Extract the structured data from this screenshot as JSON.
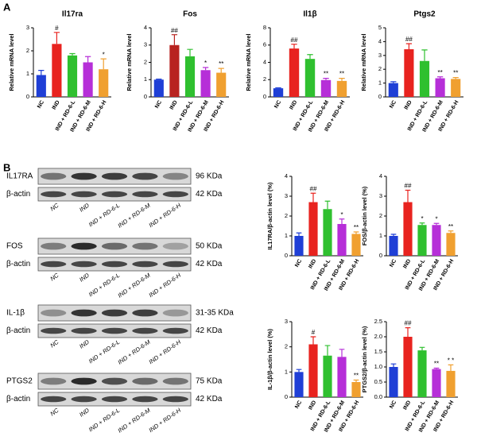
{
  "panel_labels": [
    "A",
    "B"
  ],
  "chart_data": [
    {
      "type": "bar",
      "title": "Il17ra",
      "ylabel": "Relative mRNA level",
      "categories": [
        "NC",
        "IND",
        "IND + RD-6-L",
        "IND + RD-6-M",
        "IND + RD-6-H"
      ],
      "values": [
        0.95,
        2.3,
        1.8,
        1.5,
        1.2
      ],
      "errors": [
        0.2,
        0.5,
        0.08,
        0.25,
        0.45
      ],
      "colors": [
        "#1f3fd6",
        "#e8231f",
        "#2fc02f",
        "#b62fd8",
        "#f0a030"
      ],
      "annotations": [
        null,
        "#",
        null,
        null,
        "*"
      ],
      "ylim": [
        0,
        3
      ],
      "yticks": [
        0,
        1,
        2,
        3
      ]
    },
    {
      "type": "bar",
      "title": "Fos",
      "ylabel": "Relative mRNA level",
      "categories": [
        "NC",
        "IND",
        "IND + RD-6-L",
        "IND + RD-6-M",
        "IND + RD-6-H"
      ],
      "values": [
        1.0,
        3.0,
        2.35,
        1.55,
        1.4
      ],
      "errors": [
        0.03,
        0.6,
        0.4,
        0.15,
        0.25
      ],
      "colors": [
        "#1f3fd6",
        "#b8231f",
        "#2fc02f",
        "#b62fd8",
        "#f0a030"
      ],
      "annotations": [
        null,
        "##",
        null,
        "*",
        "**"
      ],
      "ylim": [
        0,
        4
      ],
      "yticks": [
        0,
        1,
        2,
        3,
        4
      ]
    },
    {
      "type": "bar",
      "title": "Il1β",
      "ylabel": "Relative mRNA level",
      "categories": [
        "NC",
        "IND",
        "IND + RD-6-L",
        "IND + RD-6-M",
        "IND + RD-6-H"
      ],
      "values": [
        1.0,
        5.6,
        4.4,
        1.95,
        1.85
      ],
      "errors": [
        0.05,
        0.5,
        0.5,
        0.2,
        0.3
      ],
      "colors": [
        "#1f3fd6",
        "#e8231f",
        "#2fc02f",
        "#b62fd8",
        "#f0a030"
      ],
      "annotations": [
        null,
        "##",
        null,
        "**",
        "**"
      ],
      "ylim": [
        0,
        8
      ],
      "yticks": [
        0,
        2,
        4,
        6,
        8
      ]
    },
    {
      "type": "bar",
      "title": "Ptgs2",
      "ylabel": "Relative mRNA level",
      "categories": [
        "NC",
        "IND",
        "IND + RD-6-L",
        "IND + RD-6-M",
        "IND + RD-6-H"
      ],
      "values": [
        1.0,
        3.45,
        2.6,
        1.35,
        1.3
      ],
      "errors": [
        0.1,
        0.4,
        0.8,
        0.1,
        0.1
      ],
      "colors": [
        "#1f3fd6",
        "#e8231f",
        "#2fc02f",
        "#b62fd8",
        "#f0a030"
      ],
      "annotations": [
        null,
        "##",
        null,
        "**",
        "**"
      ],
      "ylim": [
        0,
        5
      ],
      "yticks": [
        0,
        1,
        2,
        3,
        4,
        5
      ]
    },
    {
      "type": "bar",
      "ylabel": "IL17RA/β-actin level (%)",
      "categories": [
        "NC",
        "IND",
        "IND + RD-6-L",
        "IND + RD-6-M",
        "IND + RD-6-H"
      ],
      "values": [
        1.0,
        2.7,
        2.35,
        1.6,
        1.1
      ],
      "errors": [
        0.15,
        0.45,
        0.4,
        0.25,
        0.1
      ],
      "colors": [
        "#1f3fd6",
        "#e8231f",
        "#2fc02f",
        "#b62fd8",
        "#f0a030"
      ],
      "annotations": [
        null,
        "##",
        null,
        "*",
        "**"
      ],
      "ylim": [
        0,
        4
      ],
      "yticks": [
        0,
        1,
        2,
        3,
        4
      ]
    },
    {
      "type": "bar",
      "ylabel": "FOS/β-actin level (%)",
      "categories": [
        "NC",
        "IND",
        "IND + RD-6-L",
        "IND + RD-6-M",
        "IND + RD-6-H"
      ],
      "values": [
        1.0,
        2.7,
        1.55,
        1.55,
        1.15
      ],
      "errors": [
        0.08,
        0.6,
        0.1,
        0.08,
        0.1
      ],
      "colors": [
        "#1f3fd6",
        "#e8231f",
        "#2fc02f",
        "#b62fd8",
        "#f0a030"
      ],
      "annotations": [
        null,
        "##",
        "*",
        "*",
        "**"
      ],
      "ylim": [
        0,
        4
      ],
      "yticks": [
        0,
        1,
        2,
        3,
        4
      ]
    },
    {
      "type": "bar",
      "ylabel": "IL-1β/β-actin level (%)",
      "categories": [
        "NC",
        "IND",
        "IND + RD-6-L",
        "IND + RD-6-M",
        "IND + RD-6-H"
      ],
      "values": [
        1.0,
        2.1,
        1.65,
        1.6,
        0.6
      ],
      "errors": [
        0.1,
        0.3,
        0.4,
        0.3,
        0.08
      ],
      "colors": [
        "#1f3fd6",
        "#e8231f",
        "#2fc02f",
        "#b62fd8",
        "#f0a030"
      ],
      "annotations": [
        null,
        "#",
        null,
        null,
        "**"
      ],
      "ylim": [
        0,
        3
      ],
      "yticks": [
        0,
        1,
        2,
        3
      ]
    },
    {
      "type": "bar",
      "ylabel": "PTGS2/β-actin level (%)",
      "categories": [
        "NC",
        "IND",
        "IND + RD-6-L",
        "IND + RD-6-M",
        "IND + RD-6-H"
      ],
      "values": [
        1.0,
        2.0,
        1.55,
        0.93,
        0.87
      ],
      "errors": [
        0.1,
        0.3,
        0.1,
        0.03,
        0.2
      ],
      "colors": [
        "#1f3fd6",
        "#e8231f",
        "#2fc02f",
        "#b62fd8",
        "#f0a030"
      ],
      "annotations": [
        null,
        "##",
        null,
        "**",
        "* *"
      ],
      "ylim": [
        0,
        2.5
      ],
      "yticks": [
        {
          "value": 0,
          "label": "0.0"
        },
        0.5,
        {
          "value": 1,
          "label": "1.0"
        },
        1.5,
        {
          "value": 2,
          "label": "2.0"
        },
        2.5
      ]
    }
  ],
  "blots": [
    {
      "target": "IL17RA",
      "target_kda": "96 KDa",
      "control": "β-actin",
      "control_kda": "42 KDa",
      "categories": [
        "NC",
        "IND",
        "IND + RD-6-L",
        "IND + RD-6-M",
        "IND + RD-6-H"
      ]
    },
    {
      "target": "FOS",
      "target_kda": "50 KDa",
      "control": "β-actin",
      "control_kda": "42 KDa",
      "categories": [
        "NC",
        "IND",
        "IND + RD-6-L",
        "IND + RD-6-M",
        "IND + RD-6-H"
      ]
    },
    {
      "target": "IL-1β",
      "target_kda": "31-35 KDa",
      "control": "β-actin",
      "control_kda": "42 KDa",
      "categories": [
        "NC",
        "IND",
        "IND + RD-6-L",
        "IND + RD-6-M",
        "IND + RD-6-H"
      ]
    },
    {
      "target": "PTGS2",
      "target_kda": "75 KDa",
      "control": "β-actin",
      "control_kda": "42 KDa",
      "categories": [
        "NC",
        "IND",
        "IND + RD-6-L",
        "IND + RD-6-M",
        "IND + RD-6-H"
      ]
    }
  ]
}
